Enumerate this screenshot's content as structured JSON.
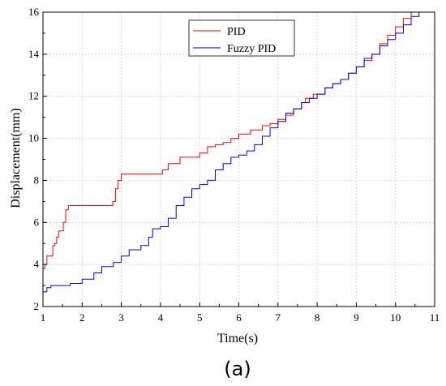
{
  "chart_data": {
    "type": "line",
    "xlabel": "Time(s)",
    "ylabel": "Displacement(mm)",
    "xlim": [
      1,
      11
    ],
    "ylim": [
      2,
      16
    ],
    "xticks": [
      1,
      2,
      3,
      4,
      5,
      6,
      7,
      8,
      9,
      10,
      11
    ],
    "yticks": [
      2,
      4,
      6,
      8,
      10,
      12,
      14,
      16
    ],
    "grid": true,
    "legend_position": "top-center",
    "panel_label": "(a)",
    "series": [
      {
        "name": "PID",
        "color": "#ff0000",
        "points": [
          [
            1.0,
            3.8
          ],
          [
            1.05,
            4.0
          ],
          [
            1.1,
            4.4
          ],
          [
            1.2,
            4.4
          ],
          [
            1.25,
            4.9
          ],
          [
            1.3,
            5.0
          ],
          [
            1.35,
            5.3
          ],
          [
            1.4,
            5.6
          ],
          [
            1.5,
            5.6
          ],
          [
            1.52,
            6.0
          ],
          [
            1.58,
            6.6
          ],
          [
            1.65,
            6.8
          ],
          [
            2.0,
            6.8
          ],
          [
            2.5,
            6.8
          ],
          [
            2.75,
            6.8
          ],
          [
            2.78,
            7.0
          ],
          [
            2.85,
            7.6
          ],
          [
            2.92,
            8.0
          ],
          [
            3.0,
            8.3
          ],
          [
            3.5,
            8.3
          ],
          [
            4.0,
            8.3
          ],
          [
            4.05,
            8.5
          ],
          [
            4.2,
            8.8
          ],
          [
            4.5,
            9.1
          ],
          [
            4.9,
            9.1
          ],
          [
            5.0,
            9.3
          ],
          [
            5.2,
            9.6
          ],
          [
            5.4,
            9.7
          ],
          [
            5.6,
            9.8
          ],
          [
            5.8,
            10.0
          ],
          [
            6.0,
            10.2
          ],
          [
            6.3,
            10.4
          ],
          [
            6.6,
            10.6
          ],
          [
            6.8,
            10.7
          ],
          [
            7.0,
            10.9
          ],
          [
            7.2,
            11.1
          ],
          [
            7.4,
            11.4
          ],
          [
            7.6,
            11.7
          ],
          [
            7.7,
            11.9
          ],
          [
            7.9,
            12.1
          ],
          [
            8.0,
            12.1
          ],
          [
            8.2,
            12.4
          ],
          [
            8.4,
            12.6
          ],
          [
            8.6,
            12.8
          ],
          [
            8.8,
            13.1
          ],
          [
            9.0,
            13.4
          ],
          [
            9.2,
            13.7
          ],
          [
            9.4,
            14.0
          ],
          [
            9.6,
            14.5
          ],
          [
            9.8,
            14.9
          ],
          [
            10.0,
            15.3
          ],
          [
            10.2,
            15.7
          ],
          [
            10.4,
            16.0
          ]
        ]
      },
      {
        "name": "Fuzzy PID",
        "color": "#0000ff",
        "points": [
          [
            1.0,
            2.7
          ],
          [
            1.1,
            2.9
          ],
          [
            1.2,
            3.0
          ],
          [
            1.5,
            3.0
          ],
          [
            1.7,
            3.1
          ],
          [
            2.0,
            3.3
          ],
          [
            2.3,
            3.6
          ],
          [
            2.5,
            3.9
          ],
          [
            2.8,
            4.1
          ],
          [
            3.0,
            4.4
          ],
          [
            3.2,
            4.7
          ],
          [
            3.5,
            4.9
          ],
          [
            3.7,
            5.3
          ],
          [
            3.8,
            5.7
          ],
          [
            4.0,
            5.8
          ],
          [
            4.2,
            6.2
          ],
          [
            4.4,
            6.8
          ],
          [
            4.6,
            7.2
          ],
          [
            4.8,
            7.6
          ],
          [
            5.0,
            7.8
          ],
          [
            5.2,
            8.0
          ],
          [
            5.4,
            8.5
          ],
          [
            5.6,
            8.8
          ],
          [
            5.8,
            9.1
          ],
          [
            6.0,
            9.2
          ],
          [
            6.2,
            9.4
          ],
          [
            6.4,
            9.7
          ],
          [
            6.6,
            10.1
          ],
          [
            6.8,
            10.5
          ],
          [
            7.0,
            10.8
          ],
          [
            7.2,
            11.2
          ],
          [
            7.4,
            11.4
          ],
          [
            7.6,
            11.7
          ],
          [
            7.8,
            11.9
          ],
          [
            8.0,
            12.1
          ],
          [
            8.2,
            12.4
          ],
          [
            8.4,
            12.6
          ],
          [
            8.6,
            12.8
          ],
          [
            8.8,
            13.1
          ],
          [
            9.0,
            13.4
          ],
          [
            9.2,
            13.8
          ],
          [
            9.4,
            14.0
          ],
          [
            9.6,
            14.4
          ],
          [
            9.8,
            14.7
          ],
          [
            10.0,
            15.0
          ],
          [
            10.2,
            15.4
          ],
          [
            10.4,
            15.8
          ],
          [
            10.6,
            16.0
          ]
        ]
      }
    ]
  }
}
